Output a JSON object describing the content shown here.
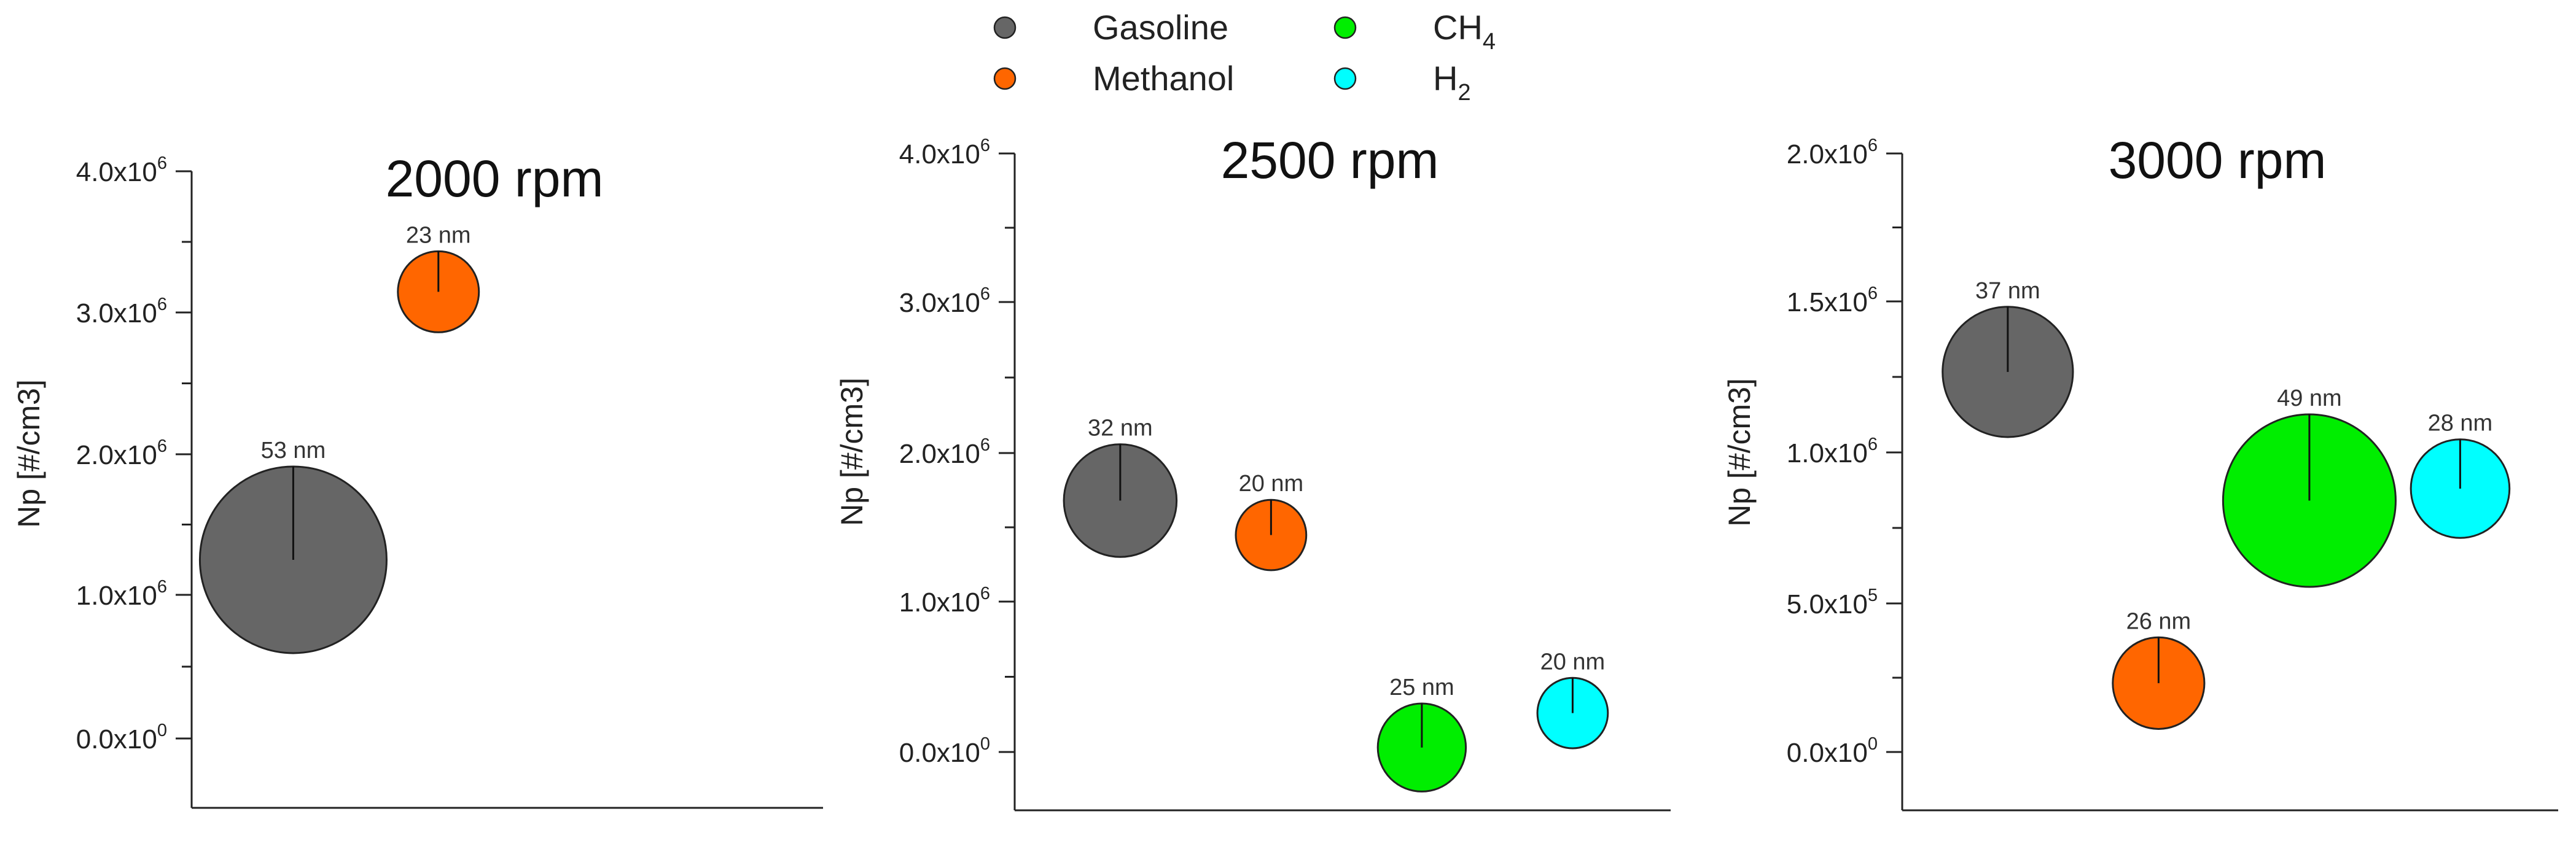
{
  "legend": {
    "placement": "top-center",
    "items": [
      {
        "name": "Gasoline",
        "color": "#666666"
      },
      {
        "name": "Methanol",
        "color": "#ff6600"
      },
      {
        "name": "CH",
        "sub": "4",
        "color": "#00ee00"
      },
      {
        "name": "H",
        "sub": "2",
        "color": "#00ffff"
      }
    ]
  },
  "chart_data": [
    {
      "type": "scatter",
      "subtype": "bubble",
      "title": "2000 rpm",
      "ylabel": "Np [#/cm3]",
      "ylim": [
        -500000,
        4000000
      ],
      "yticks": [
        {
          "value": 0,
          "mant": "0.0",
          "exp": "0"
        },
        {
          "value": 1000000,
          "mant": "1.0",
          "exp": "6"
        },
        {
          "value": 2000000,
          "mant": "2.0",
          "exp": "6"
        },
        {
          "value": 3000000,
          "mant": "3.0",
          "exp": "6"
        },
        {
          "value": 4000000,
          "mant": "4.0",
          "exp": "6"
        }
      ],
      "xlim": [
        0,
        4.35
      ],
      "grid": false,
      "points": [
        {
          "series": "Gasoline",
          "x": 0.7,
          "y": 1260000,
          "size_nm": 53,
          "label": "53 nm",
          "color": "#666666"
        },
        {
          "series": "Methanol",
          "x": 1.7,
          "y": 3150000,
          "size_nm": 23,
          "label": "23 nm",
          "color": "#ff6600"
        }
      ]
    },
    {
      "type": "scatter",
      "subtype": "bubble",
      "title": "2500 rpm",
      "ylabel": "Np [#/cm3]",
      "ylim": [
        -400000,
        4000000
      ],
      "yticks": [
        {
          "value": 0,
          "mant": "0.0",
          "exp": "0"
        },
        {
          "value": 1000000,
          "mant": "1.0",
          "exp": "6"
        },
        {
          "value": 2000000,
          "mant": "2.0",
          "exp": "6"
        },
        {
          "value": 3000000,
          "mant": "3.0",
          "exp": "6"
        },
        {
          "value": 4000000,
          "mant": "4.0",
          "exp": "6"
        }
      ],
      "xlim": [
        0,
        4.35
      ],
      "grid": false,
      "points": [
        {
          "series": "Gasoline",
          "x": 0.7,
          "y": 1680000,
          "size_nm": 32,
          "label": "32 nm",
          "color": "#666666"
        },
        {
          "series": "Methanol",
          "x": 1.7,
          "y": 1450000,
          "size_nm": 20,
          "label": "20 nm",
          "color": "#ff6600"
        },
        {
          "series": "CH4",
          "x": 2.7,
          "y": 30000,
          "size_nm": 25,
          "label": "25 nm",
          "color": "#00ee00"
        },
        {
          "series": "H2",
          "x": 3.7,
          "y": 260000,
          "size_nm": 20,
          "label": "20 nm",
          "color": "#00ffff"
        }
      ]
    },
    {
      "type": "scatter",
      "subtype": "bubble",
      "title": "3000 rpm",
      "ylabel": "Np [#/cm3]",
      "ylim": [
        -200000,
        2000000
      ],
      "yticks": [
        {
          "value": 0,
          "mant": "0.0",
          "exp": "0"
        },
        {
          "value": 500000,
          "mant": "5.0",
          "exp": "5"
        },
        {
          "value": 1000000,
          "mant": "1.0",
          "exp": "6"
        },
        {
          "value": 1500000,
          "mant": "1.5",
          "exp": "6"
        },
        {
          "value": 2000000,
          "mant": "2.0",
          "exp": "6"
        }
      ],
      "xlim": [
        0,
        4.35
      ],
      "grid": false,
      "points": [
        {
          "series": "Gasoline",
          "x": 0.7,
          "y": 1270000,
          "size_nm": 37,
          "label": "37 nm",
          "color": "#666666"
        },
        {
          "series": "Methanol",
          "x": 1.7,
          "y": 230000,
          "size_nm": 26,
          "label": "26 nm",
          "color": "#ff6600"
        },
        {
          "series": "CH4",
          "x": 2.7,
          "y": 840000,
          "size_nm": 49,
          "label": "49 nm",
          "color": "#00ee00"
        },
        {
          "series": "H2",
          "x": 3.7,
          "y": 880000,
          "size_nm": 28,
          "label": "28 nm",
          "color": "#00ffff"
        }
      ]
    }
  ]
}
